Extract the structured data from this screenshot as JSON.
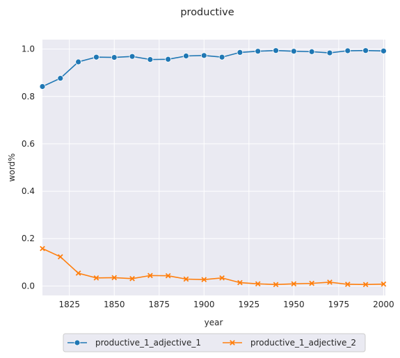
{
  "chart_data": {
    "type": "line",
    "title": "productive",
    "xlabel": "year",
    "ylabel": "word%",
    "xlim": [
      1810,
      2001
    ],
    "ylim": [
      -0.04,
      1.04
    ],
    "xticks": [
      1825,
      1850,
      1875,
      1900,
      1925,
      1950,
      1975,
      2000
    ],
    "yticks": [
      0.0,
      0.2,
      0.4,
      0.6,
      0.8,
      1.0
    ],
    "x": [
      1810,
      1820,
      1830,
      1840,
      1850,
      1860,
      1870,
      1880,
      1890,
      1900,
      1910,
      1920,
      1930,
      1940,
      1950,
      1960,
      1970,
      1980,
      1990,
      2000
    ],
    "grid": true,
    "legend_position": "bottom-center",
    "series": [
      {
        "name": "productive_1_adjective_1",
        "color": "#1f77b4",
        "marker": "circle",
        "values": [
          0.842,
          0.877,
          0.946,
          0.966,
          0.965,
          0.969,
          0.956,
          0.957,
          0.971,
          0.973,
          0.966,
          0.986,
          0.991,
          0.994,
          0.991,
          0.989,
          0.984,
          0.993,
          0.994,
          0.992
        ]
      },
      {
        "name": "productive_1_adjective_2",
        "color": "#ff7f0e",
        "marker": "x",
        "values": [
          0.158,
          0.123,
          0.054,
          0.034,
          0.035,
          0.031,
          0.044,
          0.043,
          0.029,
          0.027,
          0.034,
          0.014,
          0.009,
          0.006,
          0.009,
          0.011,
          0.016,
          0.007,
          0.006,
          0.008
        ]
      }
    ]
  }
}
